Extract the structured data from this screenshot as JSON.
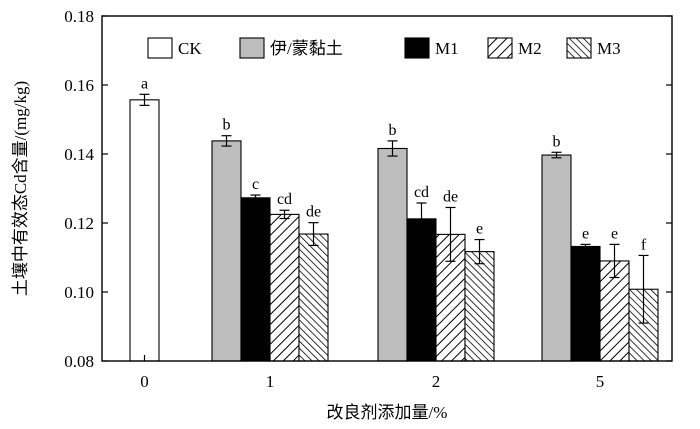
{
  "chart_data": {
    "type": "bar",
    "title": "",
    "xlabel": "改良剂添加量/%",
    "ylabel": "土壤中有效态Cd含量/(mg/kg)",
    "ylim": [
      0.08,
      0.18
    ],
    "yticks": [
      "0.08",
      "0.10",
      "0.12",
      "0.14",
      "0.16",
      "0.18"
    ],
    "grid": false,
    "legend_position": "top",
    "groups": [
      {
        "label": "0",
        "bars": [
          {
            "series": "CK",
            "value": 0.1557,
            "error": 0.0016,
            "letter": "a"
          }
        ]
      },
      {
        "label": "1",
        "bars": [
          {
            "series": "伊/蒙黏土",
            "value": 0.1438,
            "error": 0.0015,
            "letter": "b"
          },
          {
            "series": "M1",
            "value": 0.1273,
            "error": 0.0008,
            "letter": "c"
          },
          {
            "series": "M2",
            "value": 0.1225,
            "error": 0.0012,
            "letter": "cd"
          },
          {
            "series": "M3",
            "value": 0.1168,
            "error": 0.0033,
            "letter": "de"
          }
        ]
      },
      {
        "label": "2",
        "bars": [
          {
            "series": "伊/蒙黏土",
            "value": 0.1416,
            "error": 0.0022,
            "letter": "b"
          },
          {
            "series": "M1",
            "value": 0.1212,
            "error": 0.0046,
            "letter": "cd"
          },
          {
            "series": "M2",
            "value": 0.1167,
            "error": 0.0078,
            "letter": "de"
          },
          {
            "series": "M3",
            "value": 0.1117,
            "error": 0.0035,
            "letter": "e"
          }
        ]
      },
      {
        "label": "5",
        "bars": [
          {
            "series": "伊/蒙黏土",
            "value": 0.1397,
            "error": 0.0008,
            "letter": "b"
          },
          {
            "series": "M1",
            "value": 0.1132,
            "error": 0.0006,
            "letter": "e"
          },
          {
            "series": "M2",
            "value": 0.109,
            "error": 0.0048,
            "letter": "e"
          },
          {
            "series": "M3",
            "value": 0.1008,
            "error": 0.0098,
            "letter": "f"
          }
        ]
      }
    ],
    "legend": [
      {
        "name": "CK",
        "pattern": "white"
      },
      {
        "name": "伊/蒙黏土",
        "pattern": "gray"
      },
      {
        "name": "M1",
        "pattern": "black"
      },
      {
        "name": "M2",
        "pattern": "diag-right"
      },
      {
        "name": "M3",
        "pattern": "diag-left"
      }
    ],
    "colors": {
      "gray": "#bdbdbd",
      "black": "#000000",
      "white": "#ffffff"
    }
  }
}
